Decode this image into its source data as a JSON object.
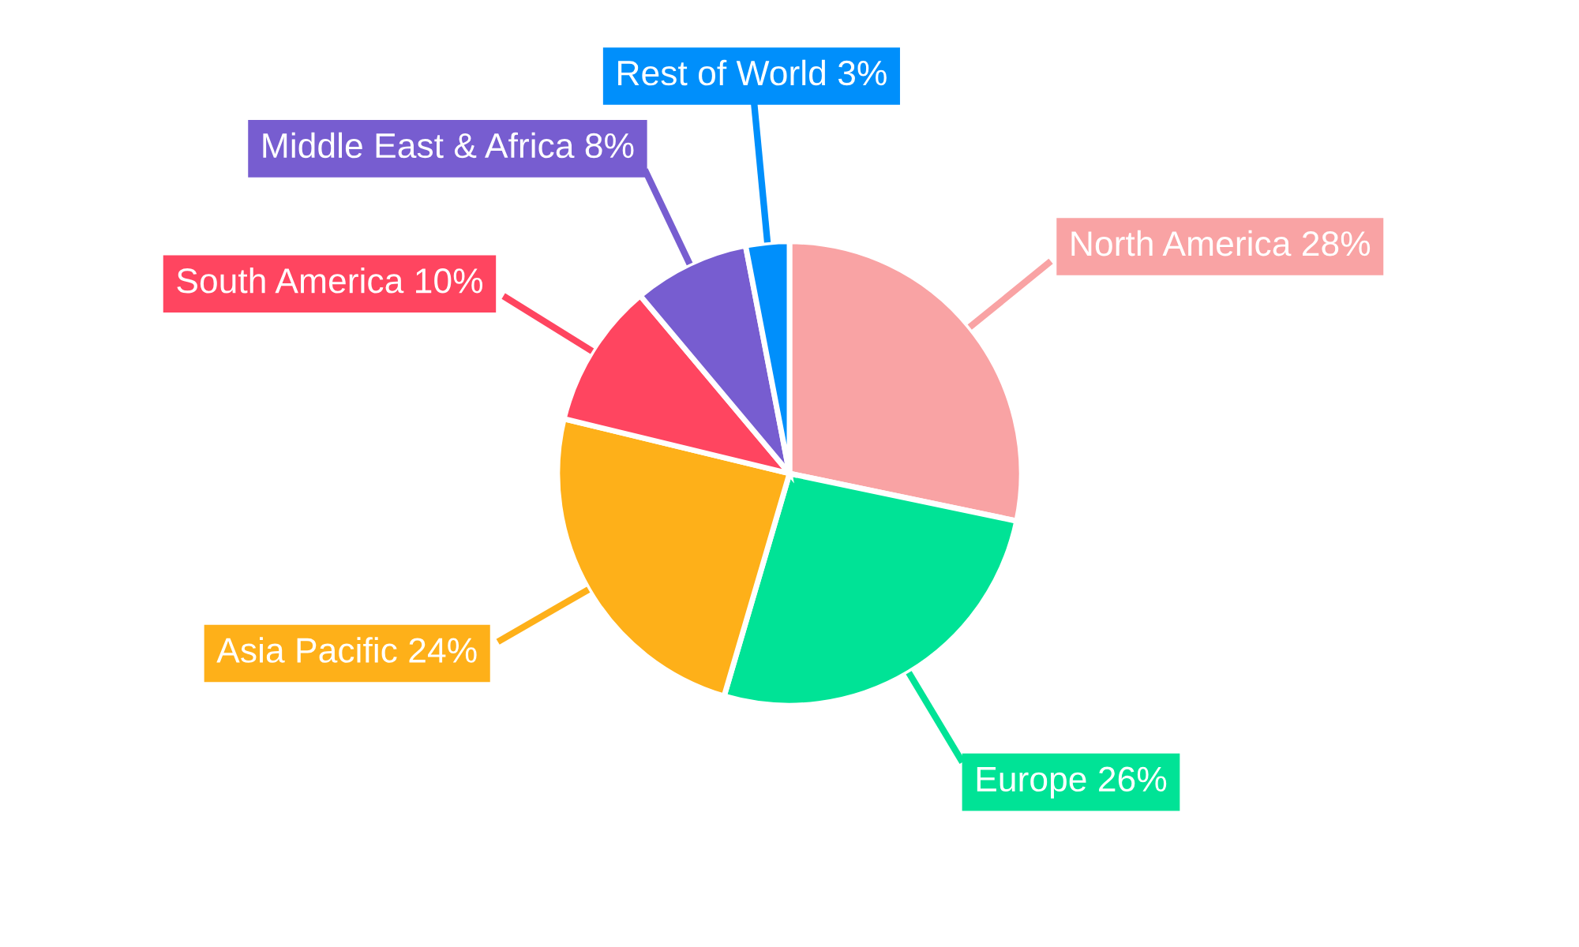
{
  "chart_data": {
    "type": "pie",
    "categories": [
      "North America",
      "Europe",
      "Asia Pacific",
      "South America",
      "Middle East & Africa",
      "Rest of World"
    ],
    "values": [
      28,
      26,
      24,
      10,
      8,
      3
    ],
    "value_labels": [
      "28%",
      "26%",
      "24%",
      "10%",
      "8%",
      "3%"
    ],
    "colors": [
      "#f9a3a4",
      "#00e396",
      "#feb019",
      "#ff4560",
      "#775dd0",
      "#008ffb"
    ],
    "legend": false
  }
}
